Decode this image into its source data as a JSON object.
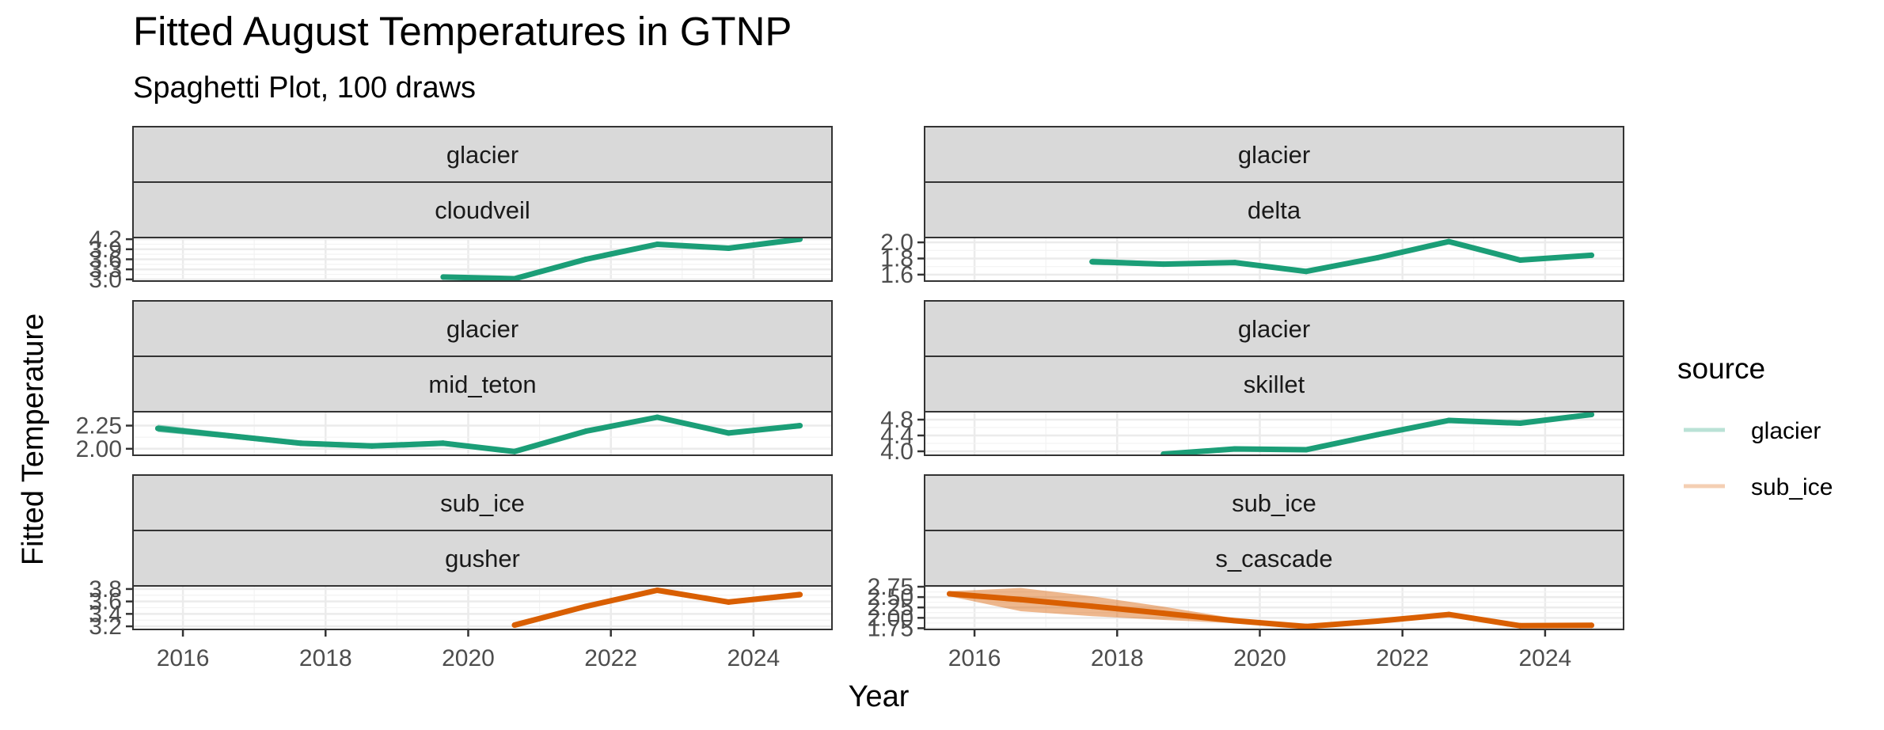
{
  "chart_data": {
    "type": "line",
    "title": "Fitted August Temperatures in GTNP",
    "subtitle": "Spaghetti Plot, 100 draws",
    "xlabel": "Year",
    "ylabel": "Fitted Temperature",
    "xlim": [
      2015.3,
      2025.1
    ],
    "x_ticks": [
      2016,
      2018,
      2020,
      2022,
      2024
    ],
    "legend": {
      "title": "source",
      "position": "right",
      "entries": [
        {
          "label": "glacier",
          "color": "#1b9e77"
        },
        {
          "label": "sub_ice",
          "color": "#d95f02"
        }
      ]
    },
    "panels": [
      {
        "strip_top": "glacier",
        "strip_bottom": "cloudveil",
        "source": "glacier",
        "ylim": [
          2.95,
          4.25
        ],
        "y_ticks": [
          {
            "v": 3.0,
            "label": "3.0"
          },
          {
            "v": 3.3,
            "label": "3.3"
          },
          {
            "v": 3.6,
            "label": "3.6"
          },
          {
            "v": 3.9,
            "label": "3.9"
          },
          {
            "v": 4.2,
            "label": "4.2"
          }
        ],
        "x": [
          2019.65,
          2020.65,
          2021.65,
          2022.65,
          2023.65,
          2024.65
        ],
        "y": [
          3.07,
          3.02,
          3.6,
          4.05,
          3.93,
          4.2
        ],
        "spread": [
          0.04,
          0.04,
          0.04,
          0.04,
          0.04,
          0.04
        ]
      },
      {
        "strip_top": "glacier",
        "strip_bottom": "delta",
        "source": "glacier",
        "ylim": [
          1.52,
          2.06
        ],
        "y_ticks": [
          {
            "v": 1.6,
            "label": "1.6"
          },
          {
            "v": 1.8,
            "label": "1.8"
          },
          {
            "v": 2.0,
            "label": "2.0"
          }
        ],
        "x": [
          2017.65,
          2018.65,
          2019.65,
          2020.65,
          2021.65,
          2022.65,
          2023.65,
          2024.65
        ],
        "y": [
          1.76,
          1.73,
          1.75,
          1.64,
          1.81,
          2.01,
          1.78,
          1.84
        ],
        "spread": [
          0.04,
          0.03,
          0.03,
          0.03,
          0.03,
          0.03,
          0.03,
          0.03
        ]
      },
      {
        "strip_top": "glacier",
        "strip_bottom": "mid_teton",
        "source": "glacier",
        "ylim": [
          1.93,
          2.4
        ],
        "y_ticks": [
          {
            "v": 2.0,
            "label": "2.00"
          },
          {
            "v": 2.25,
            "label": "2.25"
          }
        ],
        "x": [
          2015.65,
          2016.65,
          2017.65,
          2018.65,
          2019.65,
          2020.65,
          2021.65,
          2022.65,
          2023.65,
          2024.65
        ],
        "y": [
          2.22,
          2.14,
          2.06,
          2.03,
          2.06,
          1.97,
          2.19,
          2.34,
          2.17,
          2.25
        ],
        "spread": [
          0.04,
          0.03,
          0.03,
          0.03,
          0.03,
          0.02,
          0.02,
          0.02,
          0.02,
          0.03
        ]
      },
      {
        "strip_top": "glacier",
        "strip_bottom": "skillet",
        "source": "glacier",
        "ylim": [
          3.9,
          5.0
        ],
        "y_ticks": [
          {
            "v": 4.0,
            "label": "4.0"
          },
          {
            "v": 4.4,
            "label": "4.4"
          },
          {
            "v": 4.8,
            "label": "4.8"
          }
        ],
        "x": [
          2018.65,
          2019.65,
          2020.65,
          2021.65,
          2022.65,
          2023.65,
          2024.65
        ],
        "y": [
          3.93,
          4.06,
          4.04,
          4.42,
          4.78,
          4.71,
          4.93
        ],
        "spread": [
          0.02,
          0.02,
          0.02,
          0.02,
          0.02,
          0.02,
          0.02
        ]
      },
      {
        "strip_top": "sub_ice",
        "strip_bottom": "gusher",
        "source": "sub_ice",
        "ylim": [
          3.15,
          3.85
        ],
        "y_ticks": [
          {
            "v": 3.2,
            "label": "3.2"
          },
          {
            "v": 3.4,
            "label": "3.4"
          },
          {
            "v": 3.6,
            "label": "3.6"
          },
          {
            "v": 3.8,
            "label": "3.8"
          }
        ],
        "x": [
          2020.65,
          2021.65,
          2022.65,
          2023.65,
          2024.65
        ],
        "y": [
          3.22,
          3.52,
          3.78,
          3.59,
          3.71
        ],
        "spread": [
          0.05,
          0.04,
          0.04,
          0.04,
          0.05
        ]
      },
      {
        "strip_top": "sub_ice",
        "strip_bottom": "s_cascade",
        "source": "sub_ice",
        "ylim": [
          1.72,
          2.77
        ],
        "y_ticks": [
          {
            "v": 1.75,
            "label": "1.75"
          },
          {
            "v": 2.0,
            "label": "2.00"
          },
          {
            "v": 2.25,
            "label": "2.25"
          },
          {
            "v": 2.5,
            "label": "2.50"
          },
          {
            "v": 2.75,
            "label": "2.75"
          }
        ],
        "x": [
          2015.65,
          2016.65,
          2017.65,
          2018.65,
          2019.65,
          2020.65,
          2021.65,
          2022.65,
          2023.65,
          2024.65
        ],
        "y": [
          2.58,
          2.44,
          2.28,
          2.11,
          1.93,
          1.79,
          1.92,
          2.08,
          1.81,
          1.82
        ],
        "spread": [
          0.06,
          0.28,
          0.24,
          0.16,
          0.06,
          0.03,
          0.03,
          0.03,
          0.03,
          0.03
        ]
      }
    ]
  }
}
